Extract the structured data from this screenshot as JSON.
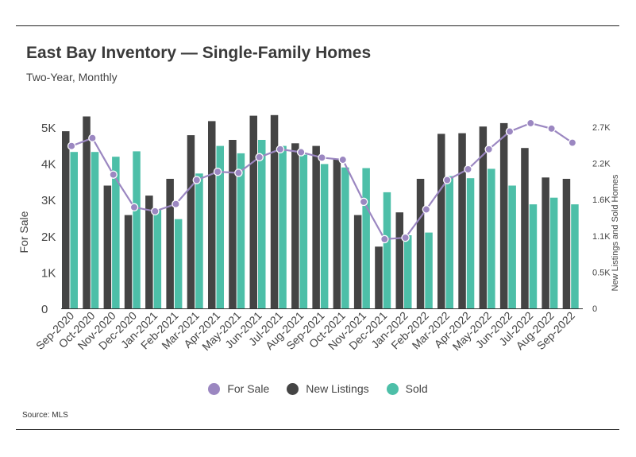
{
  "header": {
    "title": "East Bay Inventory — Single-Family Homes",
    "subtitle": "Two-Year, Monthly"
  },
  "footer": {
    "source": "Source:  MLS"
  },
  "colors": {
    "for_sale": "#9b87c1",
    "new_listings": "#444444",
    "sold": "#4dbfa8"
  },
  "chart_data": {
    "type": "bar",
    "categories": [
      "Sep-2020",
      "Oct-2020",
      "Nov-2020",
      "Dec-2020",
      "Jan-2021",
      "Feb-2021",
      "Mar-2021",
      "Apr-2021",
      "May-2021",
      "Jun-2021",
      "Jul-2021",
      "Aug-2021",
      "Sep-2021",
      "Oct-2021",
      "Nov-2021",
      "Dec-2021",
      "Jan-2022",
      "Feb-2022",
      "Mar-2022",
      "Apr-2022",
      "May-2022",
      "Jun-2022",
      "Jul-2022",
      "Aug-2022",
      "Sep-2022"
    ],
    "ylabel": "For Sale",
    "y2label": "New Listings and Sold Homes",
    "ylim": [
      0,
      5000
    ],
    "y2lim": [
      0,
      2700
    ],
    "yticks": [
      0,
      1000,
      2000,
      3000,
      4000,
      5000
    ],
    "ytick_labels": [
      "0",
      "1K",
      "2K",
      "3K",
      "4K",
      "5K"
    ],
    "y2ticks": [
      0,
      540,
      1080,
      1620,
      2160,
      2700
    ],
    "y2tick_labels": [
      "0",
      "0.5K",
      "1.1K",
      "1.6K",
      "2.2K",
      "2.7K"
    ],
    "series": [
      {
        "name": "For Sale",
        "type": "line",
        "axis": "left",
        "values": [
          4480,
          4700,
          3690,
          2790,
          2680,
          2880,
          3540,
          3770,
          3740,
          4170,
          4390,
          4310,
          4160,
          4100,
          2940,
          1910,
          1950,
          2730,
          3540,
          3840,
          4390,
          4880,
          5110,
          4960,
          4570
        ]
      },
      {
        "name": "New Listings",
        "type": "bar",
        "axis": "right",
        "values": [
          2640,
          2860,
          1830,
          1390,
          1680,
          1930,
          2580,
          2790,
          2510,
          2870,
          2880,
          2460,
          2420,
          2230,
          1390,
          920,
          1430,
          1930,
          2600,
          2610,
          2710,
          2760,
          2390,
          1950,
          1930
        ]
      },
      {
        "name": "Sold",
        "type": "bar",
        "axis": "right",
        "values": [
          2330,
          2330,
          2260,
          2340,
          1480,
          1330,
          2010,
          2420,
          2310,
          2510,
          2420,
          2290,
          2150,
          2100,
          2090,
          1730,
          1090,
          1130,
          1970,
          1940,
          2080,
          1830,
          1550,
          1650,
          1550
        ]
      }
    ],
    "legend": {
      "position": "bottom-center",
      "entries": [
        "For Sale",
        "New Listings",
        "Sold"
      ]
    },
    "grid": false
  }
}
